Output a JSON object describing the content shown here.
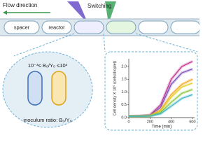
{
  "header": {
    "flow_label": "Flow direction",
    "switch_label": "Switching"
  },
  "tube": {
    "labels": [
      "spacer",
      "reactor"
    ]
  },
  "droplet": {
    "ratio_range": "10⁻³≤ B₀/Y₀ ≤10³",
    "caption": "inoculum ratio: B₀/Y₀"
  },
  "chart": {
    "type": "line",
    "ylabel": "Cell density X 10⁵ (cells/droplet)",
    "xlabel": "Time (min)",
    "x": [
      0,
      100,
      200,
      300,
      400,
      500,
      600
    ],
    "xlim": [
      0,
      620
    ],
    "xticks": [
      0,
      200,
      400,
      600
    ],
    "ylim": [
      0,
      2.3
    ],
    "yticks": [
      {
        "value": 0,
        "label": "0.0"
      },
      0.5,
      {
        "value": 1,
        "label": "1.0"
      },
      1.5,
      {
        "value": 2,
        "label": "2.0"
      }
    ],
    "series": [
      {
        "color": "#c2338f",
        "values": [
          0.05,
          0.06,
          0.1,
          0.5,
          1.5,
          2.0,
          2.2
        ]
      },
      {
        "color": "#7b4fb8",
        "values": [
          0.05,
          0.06,
          0.09,
          0.4,
          1.3,
          1.75,
          1.9
        ]
      },
      {
        "color": "#f5a623",
        "values": [
          0.05,
          0.05,
          0.08,
          0.3,
          0.9,
          1.3,
          1.5
        ]
      },
      {
        "color": "#e3cf2f",
        "values": [
          0.05,
          0.05,
          0.07,
          0.25,
          0.8,
          1.2,
          1.35
        ]
      },
      {
        "color": "#8cc63f",
        "values": [
          0.05,
          0.05,
          0.06,
          0.2,
          0.6,
          0.95,
          1.1
        ]
      },
      {
        "color": "#3bb3c3",
        "values": [
          0.05,
          0.05,
          0.06,
          0.15,
          0.45,
          0.75,
          0.9
        ]
      }
    ]
  }
}
